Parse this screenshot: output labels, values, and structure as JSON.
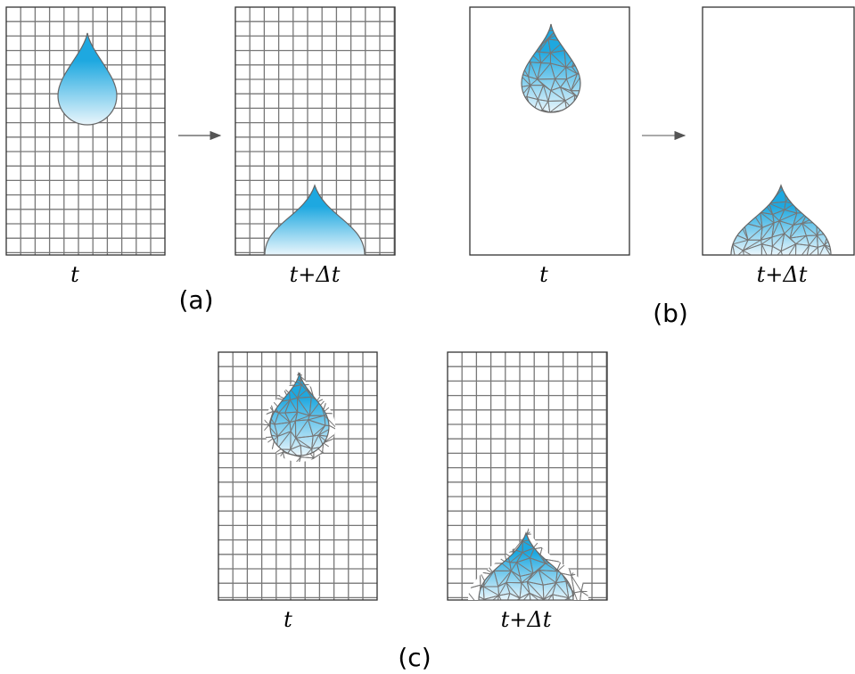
{
  "panels": [
    {
      "label": "(a)",
      "frames": [
        {
          "caption": "t"
        },
        {
          "caption": "t+Δt"
        }
      ]
    },
    {
      "label": "(b)",
      "frames": [
        {
          "caption": "t"
        },
        {
          "caption": "t+Δt"
        }
      ]
    },
    {
      "label": "(c)",
      "frames": [
        {
          "caption": "t"
        },
        {
          "caption": "t+Δt"
        }
      ]
    }
  ]
}
